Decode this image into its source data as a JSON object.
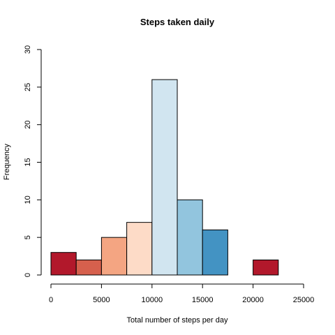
{
  "chart_data": {
    "type": "bar",
    "title": "Steps taken daily",
    "xlabel": "Total number of steps per day",
    "ylabel": "Frequency",
    "bin_edges": [
      0,
      2500,
      5000,
      7500,
      10000,
      12500,
      15000,
      17500,
      20000,
      22500,
      25000
    ],
    "values": [
      3,
      2,
      5,
      7,
      26,
      10,
      6,
      0,
      2,
      0
    ],
    "colors": [
      "#B2182B",
      "#D6604D",
      "#F4A582",
      "#FDDBC7",
      "#D1E5F0",
      "#92C5DE",
      "#4393C3",
      "#2166AC",
      "#B2182B",
      "#D6604D"
    ],
    "xlim": [
      0,
      25000
    ],
    "ylim": [
      0,
      30
    ],
    "xticks": [
      0,
      5000,
      10000,
      15000,
      20000,
      25000
    ],
    "yticks": [
      0,
      5,
      10,
      15,
      20,
      25,
      30
    ],
    "grid": false,
    "legend": "none"
  }
}
